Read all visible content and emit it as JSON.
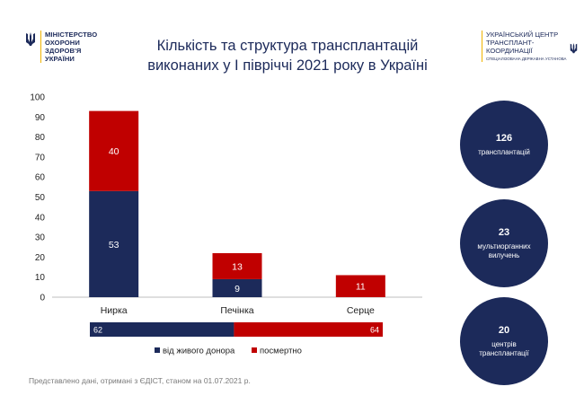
{
  "header": {
    "ministry_lines": [
      "МІНІСТЕРСТВО",
      "ОХОРОНИ",
      "ЗДОРОВ'Я",
      "УКРАЇНИ"
    ],
    "center_lines": [
      "УКРАЇНСЬКИЙ ЦЕНТР",
      "ТРАНСПЛАНТ-",
      "КООРДИНАЦІЇ"
    ],
    "center_sub": "СПЕЦІАЛІЗОВАНА ДЕРЖАВНА УСТАНОВА",
    "icon": "trident-icon"
  },
  "title_lines": [
    "Кількість та структура трансплантацій",
    "виконаних у І півріччі 2021 року в Україні"
  ],
  "chart_data": {
    "type": "bar",
    "stacked": true,
    "categories": [
      "Нирка",
      "Печінка",
      "Серце"
    ],
    "series": [
      {
        "name": "від живого донора",
        "color": "#1c2a5a",
        "values": [
          53,
          9,
          0
        ]
      },
      {
        "name": "посмертно",
        "color": "#c00000",
        "values": [
          40,
          13,
          11
        ]
      }
    ],
    "ylim": [
      0,
      100
    ],
    "yticks": [
      0,
      10,
      20,
      30,
      40,
      50,
      60,
      70,
      80,
      90,
      100
    ],
    "grid": false,
    "summary_bar": {
      "values": [
        62,
        64
      ],
      "labels": [
        "62",
        "64"
      ]
    },
    "legend": {
      "placement": "bottom",
      "items": [
        "від живого донора",
        "посмертно"
      ]
    }
  },
  "stats": [
    {
      "value": "126",
      "label_lines": [
        "трансплантацій"
      ]
    },
    {
      "value": "23",
      "label_lines": [
        "мультиорганних",
        "вилучень"
      ]
    },
    {
      "value": "20",
      "label_lines": [
        "центрів",
        "трансплантації"
      ]
    }
  ],
  "footer": "Представлено дані, отримані з ЄДІСТ, станом на 01.07.2021 р.",
  "colors": {
    "navy": "#1c2a5a",
    "red": "#c00000",
    "gold": "#f0b400"
  }
}
